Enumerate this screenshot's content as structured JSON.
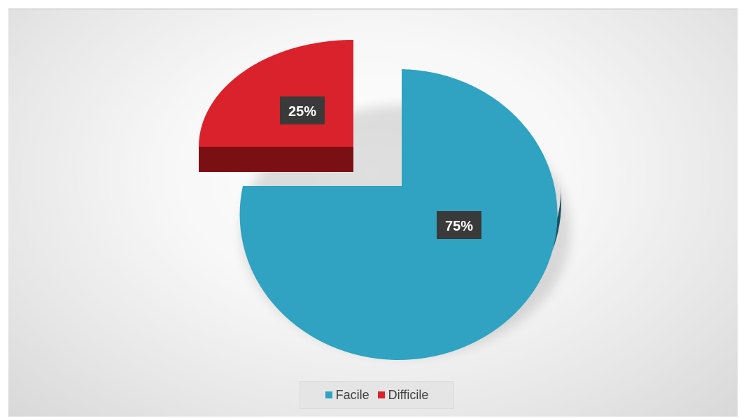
{
  "chart_data": {
    "type": "pie",
    "style": "3d-exploded",
    "categories": [
      "Facile",
      "Difficile"
    ],
    "values": [
      75,
      25
    ],
    "labels": [
      "75%",
      "25%"
    ],
    "colors": {
      "Facile": "#2fa3c1",
      "Facile_side": "#1f6d80",
      "Difficile": "#d9222b",
      "Difficile_side": "#7a1014",
      "label_bg": "#3a3a3a"
    },
    "legend_position": "bottom",
    "exploded": "Difficile"
  }
}
